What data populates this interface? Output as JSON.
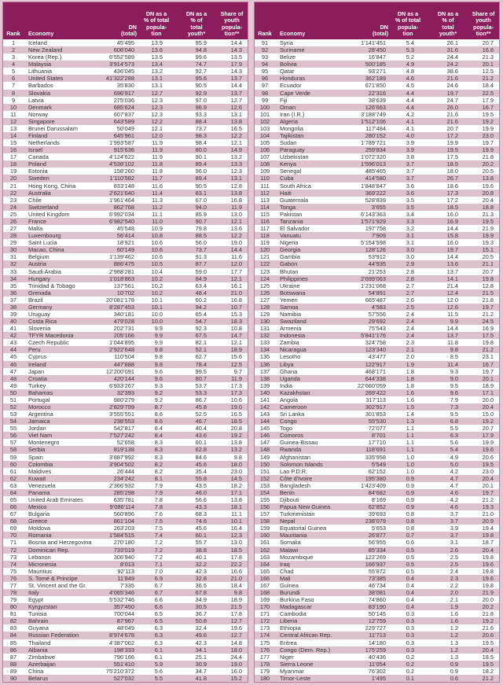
{
  "colors": {
    "header": "#8c1d5c",
    "alt_row": "#ddc1cd",
    "background": "#e6c6d4"
  },
  "headers": {
    "rank": "Rank",
    "economy": "Economy",
    "dn": "DN\n(total)",
    "pct_total": "DN as a\n% of total\npopula-\ntion",
    "pct_youth": "DN as a\n% of\ntotal\nyouth*",
    "share_youth": "Share of\nyouth\npopula-\ntion**"
  },
  "left_rows": [
    [
      "1",
      "Iceland",
      "45’495",
      "13.9",
      "95.9",
      "14.4"
    ],
    [
      "2",
      "New Zealand",
      "606’040",
      "13.6",
      "94.8",
      "14.3"
    ],
    [
      "3",
      "Korea (Rep.)",
      "6’552’589",
      "13.5",
      "99.6",
      "13.5"
    ],
    [
      "4",
      "Malaysia",
      "3’914’573",
      "13.4",
      "74.7",
      "17.9"
    ],
    [
      "5",
      "Lithuania",
      "436’045",
      "13.2",
      "92.7",
      "14.3"
    ],
    [
      "6",
      "United States",
      "41’322’288",
      "13.1",
      "95.6",
      "13.7"
    ],
    [
      "7",
      "Barbados",
      "35’830",
      "13.1",
      "90.5",
      "14.4"
    ],
    [
      "8",
      "Slovakia",
      "696’917",
      "12.7",
      "92.9",
      "13.7"
    ],
    [
      "9",
      "Latvia",
      "275’036",
      "12.3",
      "97.0",
      "12.7"
    ],
    [
      "10",
      "Denmark",
      "685’624",
      "12.3",
      "96.9",
      "12.6"
    ],
    [
      "11",
      "Norway",
      "607’837",
      "12.3",
      "93.3",
      "13.1"
    ],
    [
      "12",
      "Singapore",
      "643’589",
      "12.2",
      "88.4",
      "13.8"
    ],
    [
      "13",
      "Brunei Darussalam",
      "50’049",
      "12.1",
      "73.7",
      "16.5"
    ],
    [
      "14",
      "Finland",
      "645’961",
      "12.0",
      "98.3",
      "12.2"
    ],
    [
      "15",
      "Netherlands",
      "1’993’587",
      "11.9",
      "98.4",
      "12.1"
    ],
    [
      "16",
      "Israel",
      "915’636",
      "11.9",
      "80.0",
      "14.9"
    ],
    [
      "17",
      "Canada",
      "4’124’622",
      "11.9",
      "90.1",
      "13.2"
    ],
    [
      "18",
      "Poland",
      "4’538’102",
      "11.8",
      "89.4",
      "13.3"
    ],
    [
      "19",
      "Estonia",
      "158’260",
      "11.8",
      "96.0",
      "12.3"
    ],
    [
      "20",
      "Sweden",
      "1’110’582",
      "11.7",
      "89.4",
      "13.1"
    ],
    [
      "21",
      "Hong Kong, China",
      "833’148",
      "11.6",
      "90.5",
      "12.8"
    ],
    [
      "22",
      "Australia",
      "2’621’640",
      "11.4",
      "83.1",
      "13.8"
    ],
    [
      "23",
      "Chile",
      "1’961’464",
      "11.3",
      "67.0",
      "16.8"
    ],
    [
      "24",
      "Switzerland",
      "862’768",
      "11.2",
      "94.0",
      "11.9"
    ],
    [
      "25",
      "United Kingdom",
      "6’992’034",
      "11.1",
      "85.9",
      "13.0"
    ],
    [
      "26",
      "France",
      "6’982’540",
      "11.0",
      "90.7",
      "12.1"
    ],
    [
      "27",
      "Malta",
      "45’548",
      "10.9",
      "79.8",
      "13.6"
    ],
    [
      "28",
      "Luxembourg",
      "56’414",
      "10.8",
      "88.5",
      "12.2"
    ],
    [
      "29",
      "Saint Lucia",
      "18’921",
      "10.6",
      "56.0",
      "19.0"
    ],
    [
      "30",
      "Macao, China",
      "60’149",
      "10.6",
      "73.7",
      "14.4"
    ],
    [
      "31",
      "Belgium",
      "1’139’462",
      "10.6",
      "91.3",
      "11.6"
    ],
    [
      "32",
      "Austria",
      "886’475",
      "10.5",
      "87.7",
      "12.0"
    ],
    [
      "33",
      "Saudi Arabia",
      "2’988’281",
      "10.4",
      "59.0",
      "17.7"
    ],
    [
      "34",
      "Hungary",
      "1’018’863",
      "10.2",
      "84.9",
      "12.1"
    ],
    [
      "35",
      "Trinidad & Tobago",
      "137’561",
      "10.2",
      "63.4",
      "16.1"
    ],
    [
      "36",
      "Grenada",
      "10’702",
      "10.2",
      "48.4",
      "21.0"
    ],
    [
      "37",
      "Brazil",
      "20’081’178",
      "10.1",
      "60.2",
      "16.8"
    ],
    [
      "38",
      "Germany",
      "8’287’453",
      "10.1",
      "94.2",
      "10.7"
    ],
    [
      "39",
      "Uruguay",
      "340’181",
      "10.0",
      "65.4",
      "15.3"
    ],
    [
      "40",
      "Costa Rica",
      "479’028",
      "10.0",
      "54.7",
      "18.3"
    ],
    [
      "41",
      "Slovenia",
      "202’731",
      "9.9",
      "92.3",
      "10.8"
    ],
    [
      "42",
      "TFYR Macedonia",
      "205’166",
      "9.9",
      "67.5",
      "14.7"
    ],
    [
      "43",
      "Czech Republic",
      "1’044’895",
      "9.9",
      "82.1",
      "12.1"
    ],
    [
      "44",
      "Peru",
      "2’922’648",
      "9.8",
      "52.1",
      "18.9"
    ],
    [
      "45",
      "Cyprus",
      "110’504",
      "9.8",
      "62.7",
      "15.6"
    ],
    [
      "46",
      "Ireland",
      "447’888",
      "9.8",
      "78.4",
      "12.5"
    ],
    [
      "47",
      "Japan",
      "12’200’091",
      "9.6",
      "99.5",
      "9.7"
    ],
    [
      "48",
      "Croatia",
      "420’144",
      "9.6",
      "80.7",
      "11.9"
    ],
    [
      "49",
      "Turkey",
      "6’933’267",
      "9.3",
      "53.7",
      "17.3"
    ],
    [
      "50",
      "Bahamas",
      "32’393",
      "9.2",
      "53.3",
      "17.3"
    ],
    [
      "51",
      "Portugal",
      "980’279",
      "9.2",
      "86.7",
      "10.6"
    ],
    [
      "52",
      "Morocco",
      "2’829’799",
      "8.7",
      "45.8",
      "19.0"
    ],
    [
      "53",
      "Argentina",
      "3’555’551",
      "8.6",
      "52.5",
      "16.5"
    ],
    [
      "54",
      "Jamaica",
      "238’553",
      "8.6",
      "46.7",
      "18.5"
    ],
    [
      "55",
      "Jordan",
      "542’817",
      "8.4",
      "40.4",
      "20.8"
    ],
    [
      "56",
      "Viet Nam",
      "7’527’242",
      "8.4",
      "43.6",
      "19.2"
    ],
    [
      "57",
      "Montenegro",
      "52’658",
      "8.3",
      "60.1",
      "13.8"
    ],
    [
      "58",
      "Serbia",
      "819’138",
      "8.3",
      "62.8",
      "13.2"
    ],
    [
      "59",
      "Spain",
      "3’887’992",
      "8.3",
      "84.6",
      "9.8"
    ],
    [
      "60",
      "Colombia",
      "3’904’502",
      "8.2",
      "45.6",
      "18.0"
    ],
    [
      "61",
      "Maldives",
      "26’444",
      "8.2",
      "35.4",
      "23.0"
    ],
    [
      "62",
      "Kuwait",
      "234’242",
      "8.1",
      "55.8",
      "14.5"
    ],
    [
      "63",
      "Venezuela",
      "2’366’932",
      "7.9",
      "43.5",
      "18.2"
    ],
    [
      "64",
      "Panama",
      "285’298",
      "7.9",
      "46.0",
      "17.1"
    ],
    [
      "65",
      "United Arab Emirates",
      "635’781",
      "7.8",
      "56.6",
      "13.8"
    ],
    [
      "66",
      "Mexico",
      "9’086’114",
      "7.8",
      "43.3",
      "18.1"
    ],
    [
      "67",
      "Bulgaria",
      "560’896",
      "7.6",
      "68.3",
      "11.1"
    ],
    [
      "68",
      "Greece",
      "861’104",
      "7.5",
      "74.6",
      "10.1"
    ],
    [
      "69",
      "Moldova",
      "263’203",
      "7.5",
      "45.6",
      "16.4"
    ],
    [
      "70",
      "Romania",
      "1’584’515",
      "7.4",
      "60.1",
      "12.3"
    ],
    [
      "71",
      "Bosnia and Herzegovina",
      "270’180",
      "7.2",
      "55.7",
      "13.0"
    ],
    [
      "72",
      "Dominican Rep.",
      "733’019",
      "7.2",
      "38.8",
      "18.5"
    ],
    [
      "73",
      "Lebanon",
      "306’940",
      "7.2",
      "40.1",
      "17.8"
    ],
    [
      "74",
      "Micronesia",
      "8’013",
      "7.1",
      "32.2",
      "22.2"
    ],
    [
      "75",
      "Mauritius",
      "92’113",
      "7.0",
      "42.3",
      "16.6"
    ],
    [
      "76",
      "S. Tomé & Principe",
      "11’849",
      "6.9",
      "32.8",
      "21.0"
    ],
    [
      "77",
      "St. Vincent and the Gr.",
      "7’335",
      "6.7",
      "36.5",
      "18.4"
    ],
    [
      "78",
      "Italy",
      "4’065’346",
      "6.7",
      "67.8",
      "9.8"
    ],
    [
      "79",
      "Egypt",
      "5’532’746",
      "6.6",
      "34.9",
      "18.9"
    ],
    [
      "80",
      "Kyrgyzstan",
      "357’450",
      "6.6",
      "30.5",
      "21.5"
    ],
    [
      "81",
      "Tunisia",
      "700’044",
      "6.5",
      "36.7",
      "17.8"
    ],
    [
      "82",
      "Bahrain",
      "87’967",
      "6.5",
      "50.8",
      "12.7"
    ],
    [
      "83",
      "Guyana",
      "48’049",
      "6.3",
      "32.4",
      "19.6"
    ],
    [
      "84",
      "Russian Federation",
      "8’974’678",
      "6.3",
      "49.6",
      "12.7"
    ],
    [
      "85",
      "Thailand",
      "4’387’062",
      "6.3",
      "42.3",
      "14.8"
    ],
    [
      "86",
      "Albania",
      "198’333",
      "6.1",
      "34.1",
      "18.0"
    ],
    [
      "87",
      "Zimbabwe",
      "796’166",
      "6.1",
      "25.1",
      "24.4"
    ],
    [
      "88",
      "Azerbaijan",
      "551’410",
      "5.9",
      "30.9",
      "19.0"
    ],
    [
      "89",
      "China",
      "75’210’372",
      "5.6",
      "34.7",
      "16.0"
    ],
    [
      "90",
      "Belarus",
      "527’032",
      "5.5",
      "41.8",
      "15.2"
    ]
  ],
  "right_rows": [
    [
      "91",
      "Syria",
      "1’141’451",
      "5.4",
      "26.1",
      "20.7"
    ],
    [
      "92",
      "Suriname",
      "28’450",
      "5.3",
      "31.6",
      "16.8"
    ],
    [
      "93",
      "Belize",
      "16’847",
      "5.2",
      "24.4",
      "21.3"
    ],
    [
      "94",
      "Bolivia",
      "500’185",
      "4.9",
      "24.2",
      "20.1"
    ],
    [
      "95",
      "Qatar",
      "93’271",
      "4.8",
      "38.6",
      "12.5"
    ],
    [
      "96",
      "Honduras",
      "362’189",
      "4.6",
      "21.6",
      "21.2"
    ],
    [
      "97",
      "Ecuador",
      "671’850",
      "4.5",
      "24.6",
      "18.4"
    ],
    [
      "98",
      "Cape Verde",
      "22’316",
      "4.4",
      "19.7",
      "22.5"
    ],
    [
      "99",
      "Fiji",
      "38’639",
      "4.4",
      "24.7",
      "17.9"
    ],
    [
      "100",
      "Oman",
      "126’663",
      "4.4",
      "26.0",
      "16.7"
    ],
    [
      "101",
      "Iran (I.R.)",
      "3’188’749",
      "4.2",
      "21.6",
      "19.5"
    ],
    [
      "102",
      "Algeria",
      "1’512’106",
      "4.1",
      "21.6",
      "19.2"
    ],
    [
      "103",
      "Mongolia",
      "117’484",
      "4.1",
      "20.7",
      "19.9"
    ],
    [
      "104",
      "Tajikistan",
      "280’152",
      "4.0",
      "17.2",
      "23.0"
    ],
    [
      "105",
      "Sudan",
      "1’789’721",
      "3.9",
      "19.9",
      "19.7"
    ],
    [
      "106",
      "Paraguay",
      "259’834",
      "3.9",
      "19.5",
      "19.9"
    ],
    [
      "107",
      "Uzbekistan",
      "1’072’320",
      "3.8",
      "17.5",
      "21.8"
    ],
    [
      "108",
      "Kenya",
      "1’596’013",
      "3.7",
      "18.5",
      "20.2"
    ],
    [
      "109",
      "Senegal",
      "485’465",
      "3.7",
      "18.0",
      "20.5"
    ],
    [
      "110",
      "Cuba",
      "414’580",
      "3.7",
      "26.7",
      "13.8"
    ],
    [
      "111",
      "South Africa",
      "1’848’847",
      "3.6",
      "18.6",
      "19.6"
    ],
    [
      "112",
      "Haiti",
      "369’222",
      "3.6",
      "17.3",
      "20.8"
    ],
    [
      "113",
      "Guatemala",
      "528’839",
      "3.5",
      "17.2",
      "20.4"
    ],
    [
      "114",
      "Tonga",
      "3’655",
      "3.5",
      "18.5",
      "18.8"
    ],
    [
      "115",
      "Pakistan",
      "6’143’363",
      "3.4",
      "16.0",
      "21.3"
    ],
    [
      "116",
      "Tanzania",
      "1’571’929",
      "3.3",
      "16.9",
      "19.5"
    ],
    [
      "117",
      "El Salvador",
      "197’758",
      "3.2",
      "14.4",
      "21.9"
    ],
    [
      "118",
      "Vanuatu",
      "7’909",
      "3.1",
      "15.8",
      "19.9"
    ],
    [
      "119",
      "Nigeria",
      "5’154’598",
      "3.1",
      "16.0",
      "19.3"
    ],
    [
      "120",
      "Georgia",
      "128’126",
      "3.0",
      "19.7",
      "15.1"
    ],
    [
      "121",
      "Gambia",
      "53’912",
      "3.0",
      "14.4",
      "20.5"
    ],
    [
      "122",
      "Gabon",
      "44’935",
      "2.9",
      "13.6",
      "21.1"
    ],
    [
      "123",
      "Bhutan",
      "21’253",
      "2.8",
      "13.7",
      "20.7"
    ],
    [
      "124",
      "Philippines",
      "2’699’063",
      "2.8",
      "14.1",
      "19.8"
    ],
    [
      "125",
      "Ukraine",
      "1’231’068",
      "2.7",
      "21.4",
      "12.8"
    ],
    [
      "126",
      "Botswana",
      "54’891",
      "2.7",
      "12.4",
      "21.5"
    ],
    [
      "127",
      "Yemen",
      "665’487",
      "2.6",
      "12.0",
      "21.8"
    ],
    [
      "128",
      "Samoa",
      "4’583",
      "2.5",
      "12.6",
      "19.7"
    ],
    [
      "129",
      "Namibia",
      "57’556",
      "2.4",
      "11.5",
      "21.2"
    ],
    [
      "130",
      "Swaziland",
      "29’692",
      "2.4",
      "9.9",
      "24.5"
    ],
    [
      "131",
      "Armenia",
      "75’543",
      "2.4",
      "14.4",
      "16.9"
    ],
    [
      "132",
      "Indonesia",
      "5’841’176",
      "2.4",
      "13.7",
      "17.5"
    ],
    [
      "133",
      "Zambia",
      "324’758",
      "2.3",
      "11.8",
      "19.8"
    ],
    [
      "134",
      "Nicaragua",
      "123’340",
      "2.1",
      "9.8",
      "21.2"
    ],
    [
      "135",
      "Lesotho",
      "43’477",
      "2.0",
      "8.5",
      "23.1"
    ],
    [
      "136",
      "Libya",
      "122’917",
      "1.9",
      "11.4",
      "16.7"
    ],
    [
      "137",
      "Ghana",
      "468’171",
      "1.8",
      "9.3",
      "19.7"
    ],
    [
      "138",
      "Uganda",
      "644’338",
      "1.8",
      "9.0",
      "20.1"
    ],
    [
      "139",
      "India",
      "22’660’059",
      "1.8",
      "9.5",
      "18.9"
    ],
    [
      "140",
      "Kazakhstan",
      "269’422",
      "1.6",
      "9.6",
      "17.1"
    ],
    [
      "141",
      "Angola",
      "317’113",
      "1.6",
      "7.9",
      "20.0"
    ],
    [
      "142",
      "Cameroon",
      "302’917",
      "1.5",
      "7.3",
      "20.4"
    ],
    [
      "143",
      "Sri Lanka",
      "301’853",
      "1.4",
      "9.5",
      "15.0"
    ],
    [
      "144",
      "Congo",
      "55’530",
      "1.3",
      "6.8",
      "19.2"
    ],
    [
      "145",
      "Togo",
      "72’077",
      "1.1",
      "5.5",
      "20.7"
    ],
    [
      "146",
      "Comoros",
      "8’701",
      "1.1",
      "6.3",
      "17.9"
    ],
    [
      "147",
      "Guinea-Bissau",
      "17’710",
      "1.1",
      "5.6",
      "19.9"
    ],
    [
      "148",
      "Rwanda",
      "118’691",
      "1.1",
      "5.4",
      "19.6"
    ],
    [
      "149",
      "Afghanistan",
      "335’958",
      "1.0",
      "4.9",
      "20.6"
    ],
    [
      "150",
      "Solomon Islands",
      "5’549",
      "1.0",
      "5.0",
      "19.5"
    ],
    [
      "151",
      "Lao P.D.R.",
      "62’152",
      "1.0",
      "4.2",
      "23.0"
    ],
    [
      "152",
      "Côte d'Ivoire",
      "195’380",
      "0.9",
      "4.7",
      "20.4"
    ],
    [
      "153",
      "Bangladesh",
      "1’423’409",
      "0.9",
      "4.7",
      "20.1"
    ],
    [
      "154",
      "Benin",
      "84’682",
      "0.9",
      "4.6",
      "19.7"
    ],
    [
      "155",
      "Djibouti",
      "8’169",
      "0.9",
      "4.2",
      "21.2"
    ],
    [
      "156",
      "Papua New Guinea",
      "62’852",
      "0.9",
      "4.6",
      "19.3"
    ],
    [
      "157",
      "Turkmenistan",
      "39’693",
      "0.8",
      "3.7",
      "21.0"
    ],
    [
      "158",
      "Nepal",
      "238’079",
      "0.8",
      "3.7",
      "20.9"
    ],
    [
      "159",
      "Equatorial Guinea",
      "5’653",
      "0.8",
      "3.9",
      "19.4"
    ],
    [
      "160",
      "Mauritania",
      "26’877",
      "0.7",
      "3.7",
      "19.8"
    ],
    [
      "161",
      "Somalia",
      "56’955",
      "0.6",
      "3.1",
      "18.7"
    ],
    [
      "162",
      "Malawi",
      "85’334",
      "0.5",
      "2.6",
      "20.4"
    ],
    [
      "163",
      "Mozambique",
      "122’269",
      "0.5",
      "2.5",
      "19.8"
    ],
    [
      "164",
      "Iraq",
      "166’937",
      "0.5",
      "2.5",
      "19.6"
    ],
    [
      "165",
      "Chad",
      "55’872",
      "0.5",
      "2.4",
      "19.8"
    ],
    [
      "166",
      "Mali",
      "73’385",
      "0.4",
      "2.3",
      "19.6"
    ],
    [
      "167",
      "Guinea",
      "46’734",
      "0.4",
      "2.2",
      "19.8"
    ],
    [
      "168",
      "Burundi",
      "38’081",
      "0.4",
      "2.0",
      "21.9"
    ],
    [
      "169",
      "Burkina Faso",
      "74’860",
      "0.4",
      "2.1",
      "20.0"
    ],
    [
      "170",
      "Madagascar",
      "83’190",
      "0.4",
      "1.9",
      "20.2"
    ],
    [
      "171",
      "Cambodia",
      "50’145",
      "0.3",
      "1.6",
      "21.8"
    ],
    [
      "172",
      "Liberia",
      "12’759",
      "0.3",
      "1.6",
      "19.2"
    ],
    [
      "173",
      "Ethiopia",
      "229’727",
      "0.3",
      "1.2",
      "21.6"
    ],
    [
      "174",
      "Central African Rep.",
      "11’713",
      "0.3",
      "1.2",
      "20.6"
    ],
    [
      "175",
      "Eritrea",
      "14’180",
      "0.3",
      "1.3",
      "19.5"
    ],
    [
      "176",
      "Congo (Dem. Rep.)",
      "175’259",
      "0.3",
      "1.2",
      "20.4"
    ],
    [
      "177",
      "Niger",
      "40’436",
      "0.2",
      "1.3",
      "18.5"
    ],
    [
      "178",
      "Sierra Leone",
      "11’054",
      "0.2",
      "0.9",
      "19.5"
    ],
    [
      "179",
      "Myanmar",
      "76’302",
      "0.2",
      "0.9",
      "18.2"
    ],
    [
      "180",
      "Timor-Leste",
      "1’495",
      "0.1",
      "0.6",
      "21.2"
    ]
  ]
}
